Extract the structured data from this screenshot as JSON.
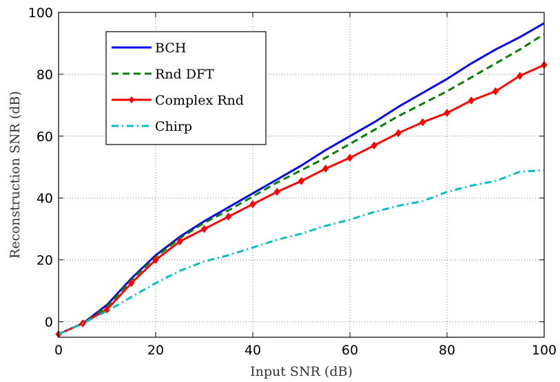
{
  "chart_data": {
    "type": "line",
    "title": "",
    "xlabel": "Input SNR (dB)",
    "ylabel": "Reconstruction SNR (dB)",
    "xlim": [
      0,
      100
    ],
    "ylim": [
      -5,
      100
    ],
    "xticks": [
      0,
      20,
      40,
      60,
      80,
      100
    ],
    "yticks": [
      0,
      20,
      40,
      60,
      80,
      100
    ],
    "grid": true,
    "legend_position": "top-left",
    "x": [
      0,
      5,
      10,
      15,
      20,
      25,
      30,
      35,
      40,
      45,
      50,
      55,
      60,
      65,
      70,
      75,
      80,
      85,
      90,
      95,
      100
    ],
    "series": [
      {
        "name": "BCH",
        "color": "#0000ee",
        "style": "solid",
        "marker": "none",
        "values": [
          -4,
          -0.5,
          5.5,
          14,
          21.5,
          27.5,
          32.5,
          37,
          41.5,
          46,
          50.5,
          55.5,
          60,
          64.5,
          69.5,
          74,
          78.5,
          83.5,
          88,
          92,
          96.5
        ]
      },
      {
        "name": "Rnd DFT",
        "color": "#007f00",
        "style": "dashed",
        "marker": "none",
        "values": [
          -4,
          -0.5,
          5,
          13.5,
          21,
          27,
          32,
          36,
          40.5,
          45,
          49,
          53,
          57.5,
          62,
          66.5,
          70.5,
          74.5,
          79,
          83.5,
          88,
          93
        ]
      },
      {
        "name": "Complex Rnd",
        "color": "#ff0000",
        "style": "solid",
        "marker": "diamond",
        "values": [
          -4,
          -0.5,
          4,
          12.5,
          20,
          26,
          30,
          34,
          38,
          42,
          45.5,
          49.5,
          53,
          57,
          61,
          64.5,
          67.5,
          71.5,
          74.5,
          79.5,
          83
        ]
      },
      {
        "name": "Chirp",
        "color": "#00bfbf",
        "style": "dashdot",
        "marker": "none",
        "values": [
          -4,
          -0.5,
          3.5,
          8,
          12.5,
          16.5,
          19.5,
          21.5,
          24,
          26.5,
          28.5,
          31,
          33,
          35.5,
          37.5,
          39,
          42,
          44,
          45.5,
          48.5,
          49
        ]
      }
    ]
  }
}
